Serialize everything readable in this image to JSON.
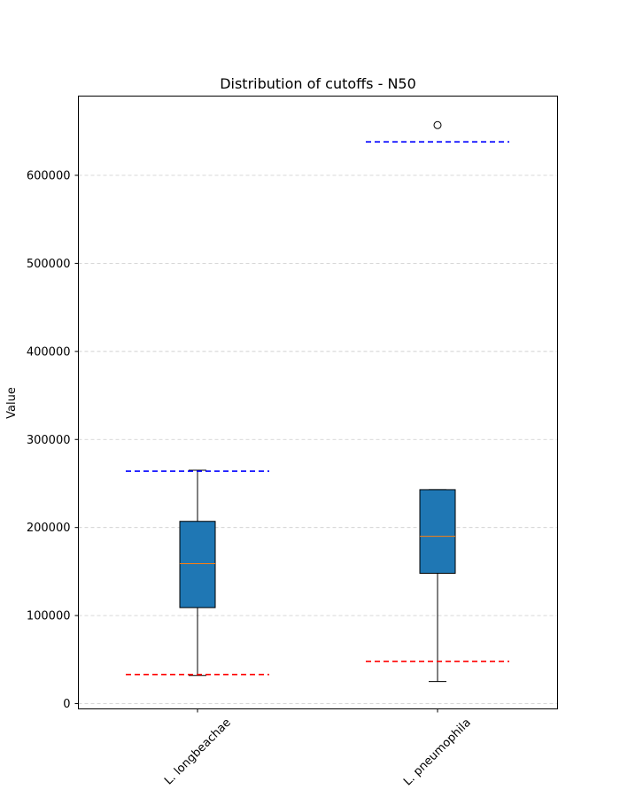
{
  "chart_data": {
    "type": "box",
    "title": "Distribution of cutoffs - N50",
    "xlabel": "",
    "ylabel": "Value",
    "categories": [
      "L. longbeachae",
      "L. pneumophila"
    ],
    "ylim": [
      -6000,
      690000
    ],
    "yticks": [
      0,
      100000,
      200000,
      300000,
      400000,
      500000,
      600000
    ],
    "ytick_labels": [
      "0",
      "100000",
      "200000",
      "300000",
      "400000",
      "500000",
      "600000"
    ],
    "grid": "y, dashed",
    "boxes": [
      {
        "category": "L. longbeachae",
        "whisker_low": 32000,
        "q1": 109000,
        "median": 159000,
        "q3": 207000,
        "whisker_high": 265000,
        "outliers": []
      },
      {
        "category": "L. pneumophila",
        "whisker_low": 25000,
        "q1": 148000,
        "median": 190000,
        "q3": 243000,
        "whisker_high": 243000,
        "outliers": [
          657000
        ]
      }
    ],
    "cutoff_lines": [
      {
        "category": "L. longbeachae",
        "lower": 33000,
        "upper": 264000
      },
      {
        "category": "L. pneumophila",
        "lower": 48000,
        "upper": 638000
      }
    ],
    "colors": {
      "box_fill": "#1f77b4",
      "median": "#ff7f0e",
      "upper_cutoff": "#0000ff",
      "lower_cutoff": "#ff0000",
      "grid": "#cccccc"
    }
  }
}
